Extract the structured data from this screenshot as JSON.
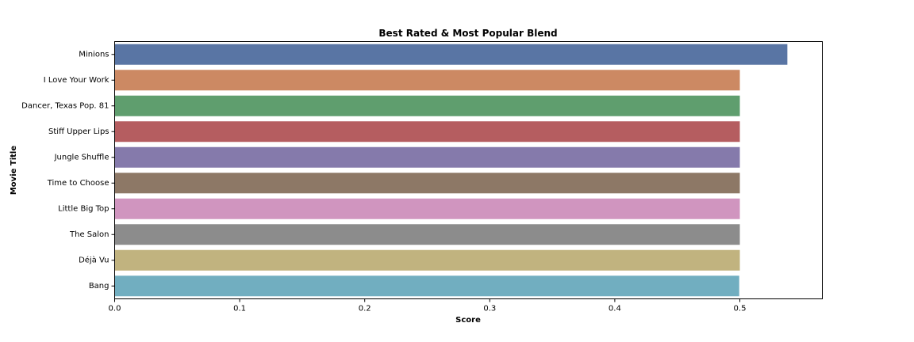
{
  "chart_data": {
    "type": "bar",
    "orientation": "horizontal",
    "title": "Best Rated & Most Popular Blend",
    "xlabel": "Score",
    "ylabel": "Movie Title",
    "xlim": [
      0,
      0.566
    ],
    "xticks": [
      "0.0",
      "0.1",
      "0.2",
      "0.3",
      "0.4",
      "0.5"
    ],
    "grid": false,
    "categories": [
      "Minions",
      "I Love Your Work",
      "Dancer, Texas Pop. 81",
      "Stiff Upper Lips",
      "Jungle Shuffle",
      "Time to Choose",
      "Little Big Top",
      "The Salon",
      "Déjà Vu",
      "Bang"
    ],
    "values": [
      0.538,
      0.5,
      0.5,
      0.5,
      0.5,
      0.5,
      0.5,
      0.5,
      0.5,
      0.4995
    ],
    "colors": [
      "#5975a4",
      "#cc8963",
      "#5f9e6e",
      "#b55d60",
      "#857aab",
      "#8d7866",
      "#d095bf",
      "#8c8c8c",
      "#c1b37f",
      "#71aec0"
    ]
  }
}
